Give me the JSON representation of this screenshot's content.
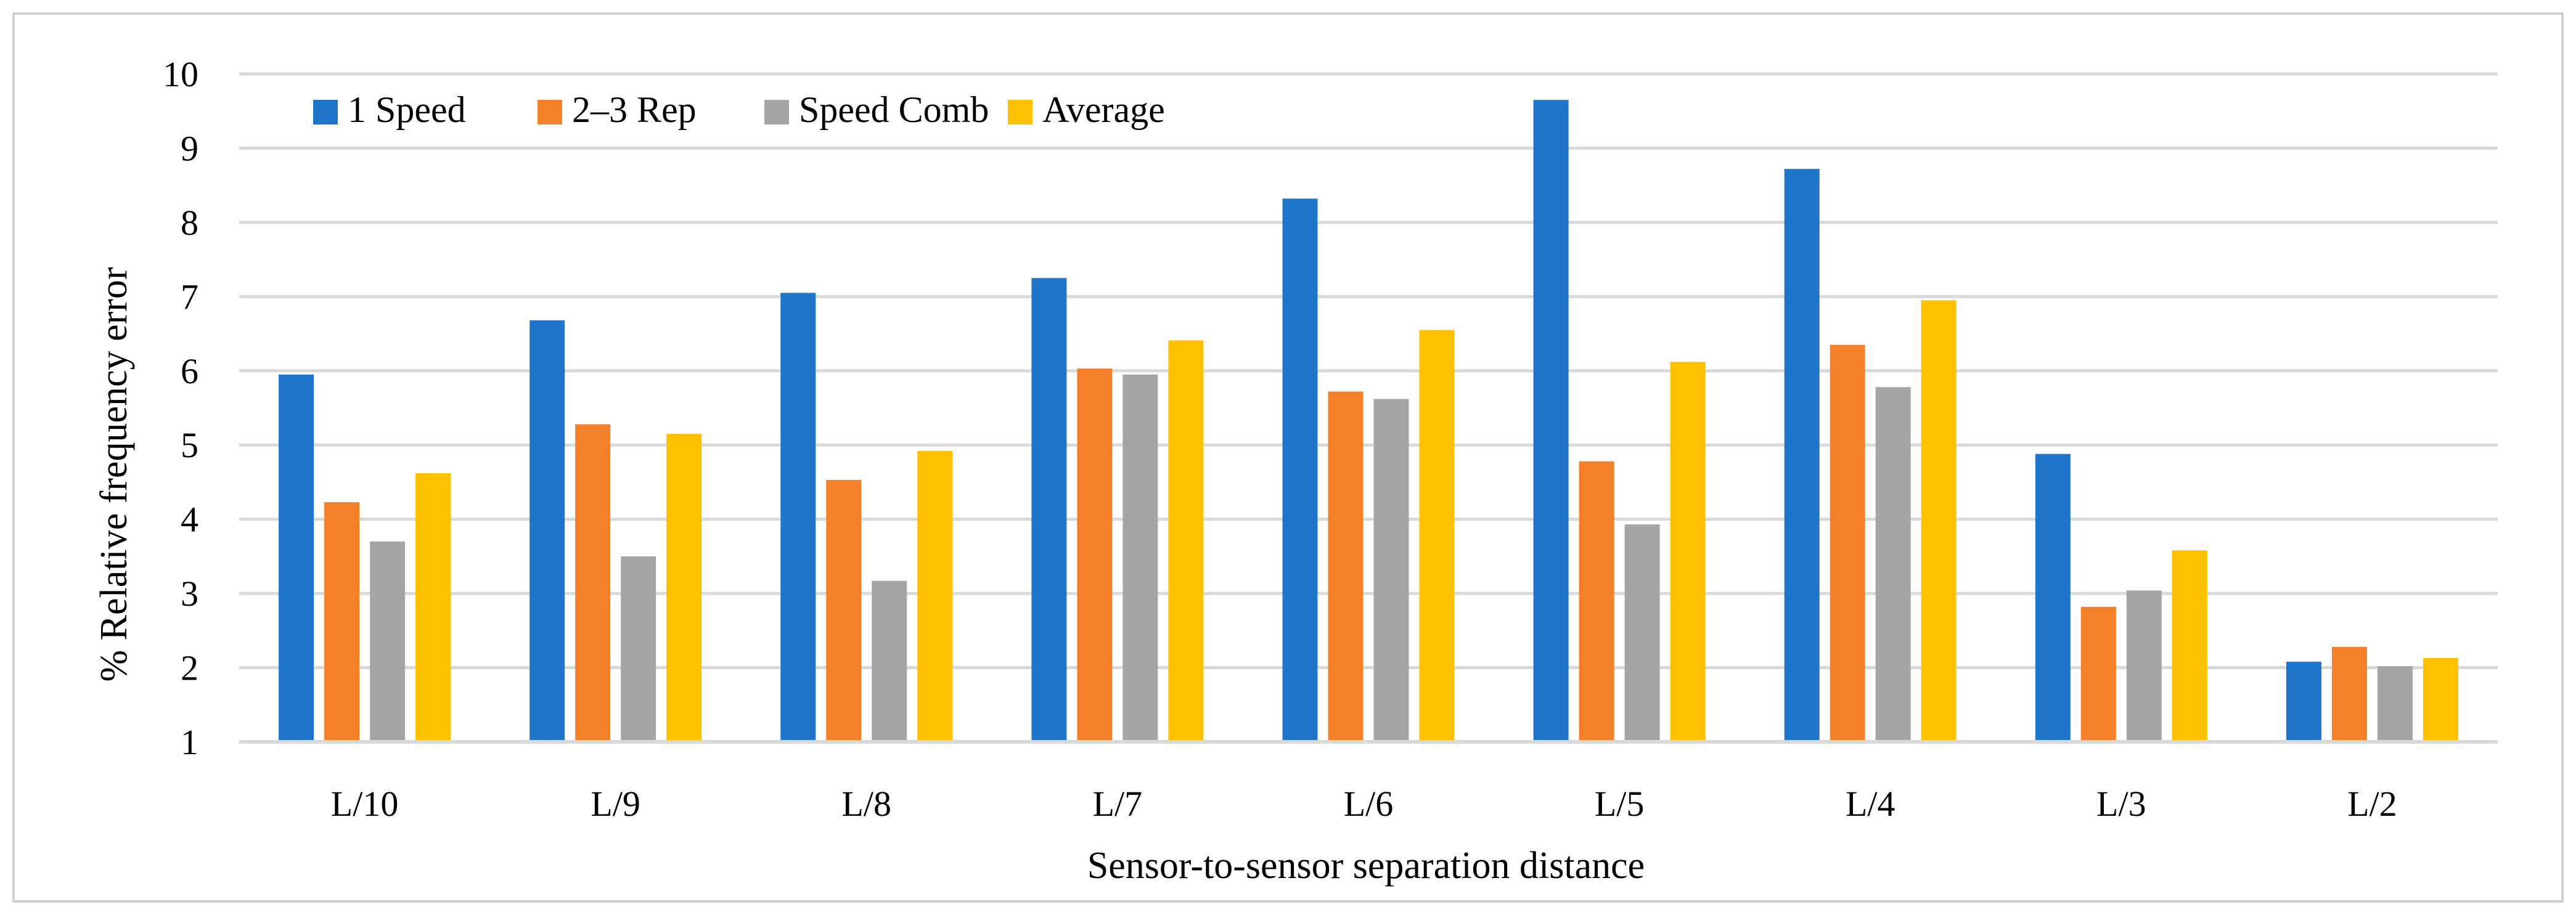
{
  "chart_data": {
    "type": "bar",
    "title": "",
    "xlabel": "Sensor-to-sensor separation distance",
    "ylabel": "% Relative frequency error",
    "ylim": [
      1,
      10
    ],
    "yticks": [
      1,
      2,
      3,
      4,
      5,
      6,
      7,
      8,
      9,
      10
    ],
    "grid": true,
    "legend_position": "top-left",
    "categories": [
      "L/10",
      "L/9",
      "L/8",
      "L/7",
      "L/6",
      "L/5",
      "L/4",
      "L/3",
      "L/2"
    ],
    "series": [
      {
        "name": "1 Speed",
        "color": "#1F75C9",
        "values": [
          5.95,
          6.68,
          7.05,
          7.25,
          8.32,
          9.65,
          8.72,
          4.88,
          2.08
        ]
      },
      {
        "name": "2–3 Rep",
        "color": "#F5802A",
        "values": [
          4.23,
          5.28,
          4.53,
          6.03,
          5.72,
          4.78,
          6.35,
          2.82,
          2.28
        ]
      },
      {
        "name": "Speed Comb",
        "color": "#A5A5A5",
        "values": [
          3.7,
          3.5,
          3.17,
          5.95,
          5.62,
          3.93,
          5.78,
          3.04,
          2.02
        ]
      },
      {
        "name": "Average",
        "color": "#FFC000",
        "values": [
          4.62,
          5.15,
          4.92,
          6.41,
          6.55,
          6.12,
          6.95,
          3.58,
          2.13
        ]
      }
    ]
  }
}
